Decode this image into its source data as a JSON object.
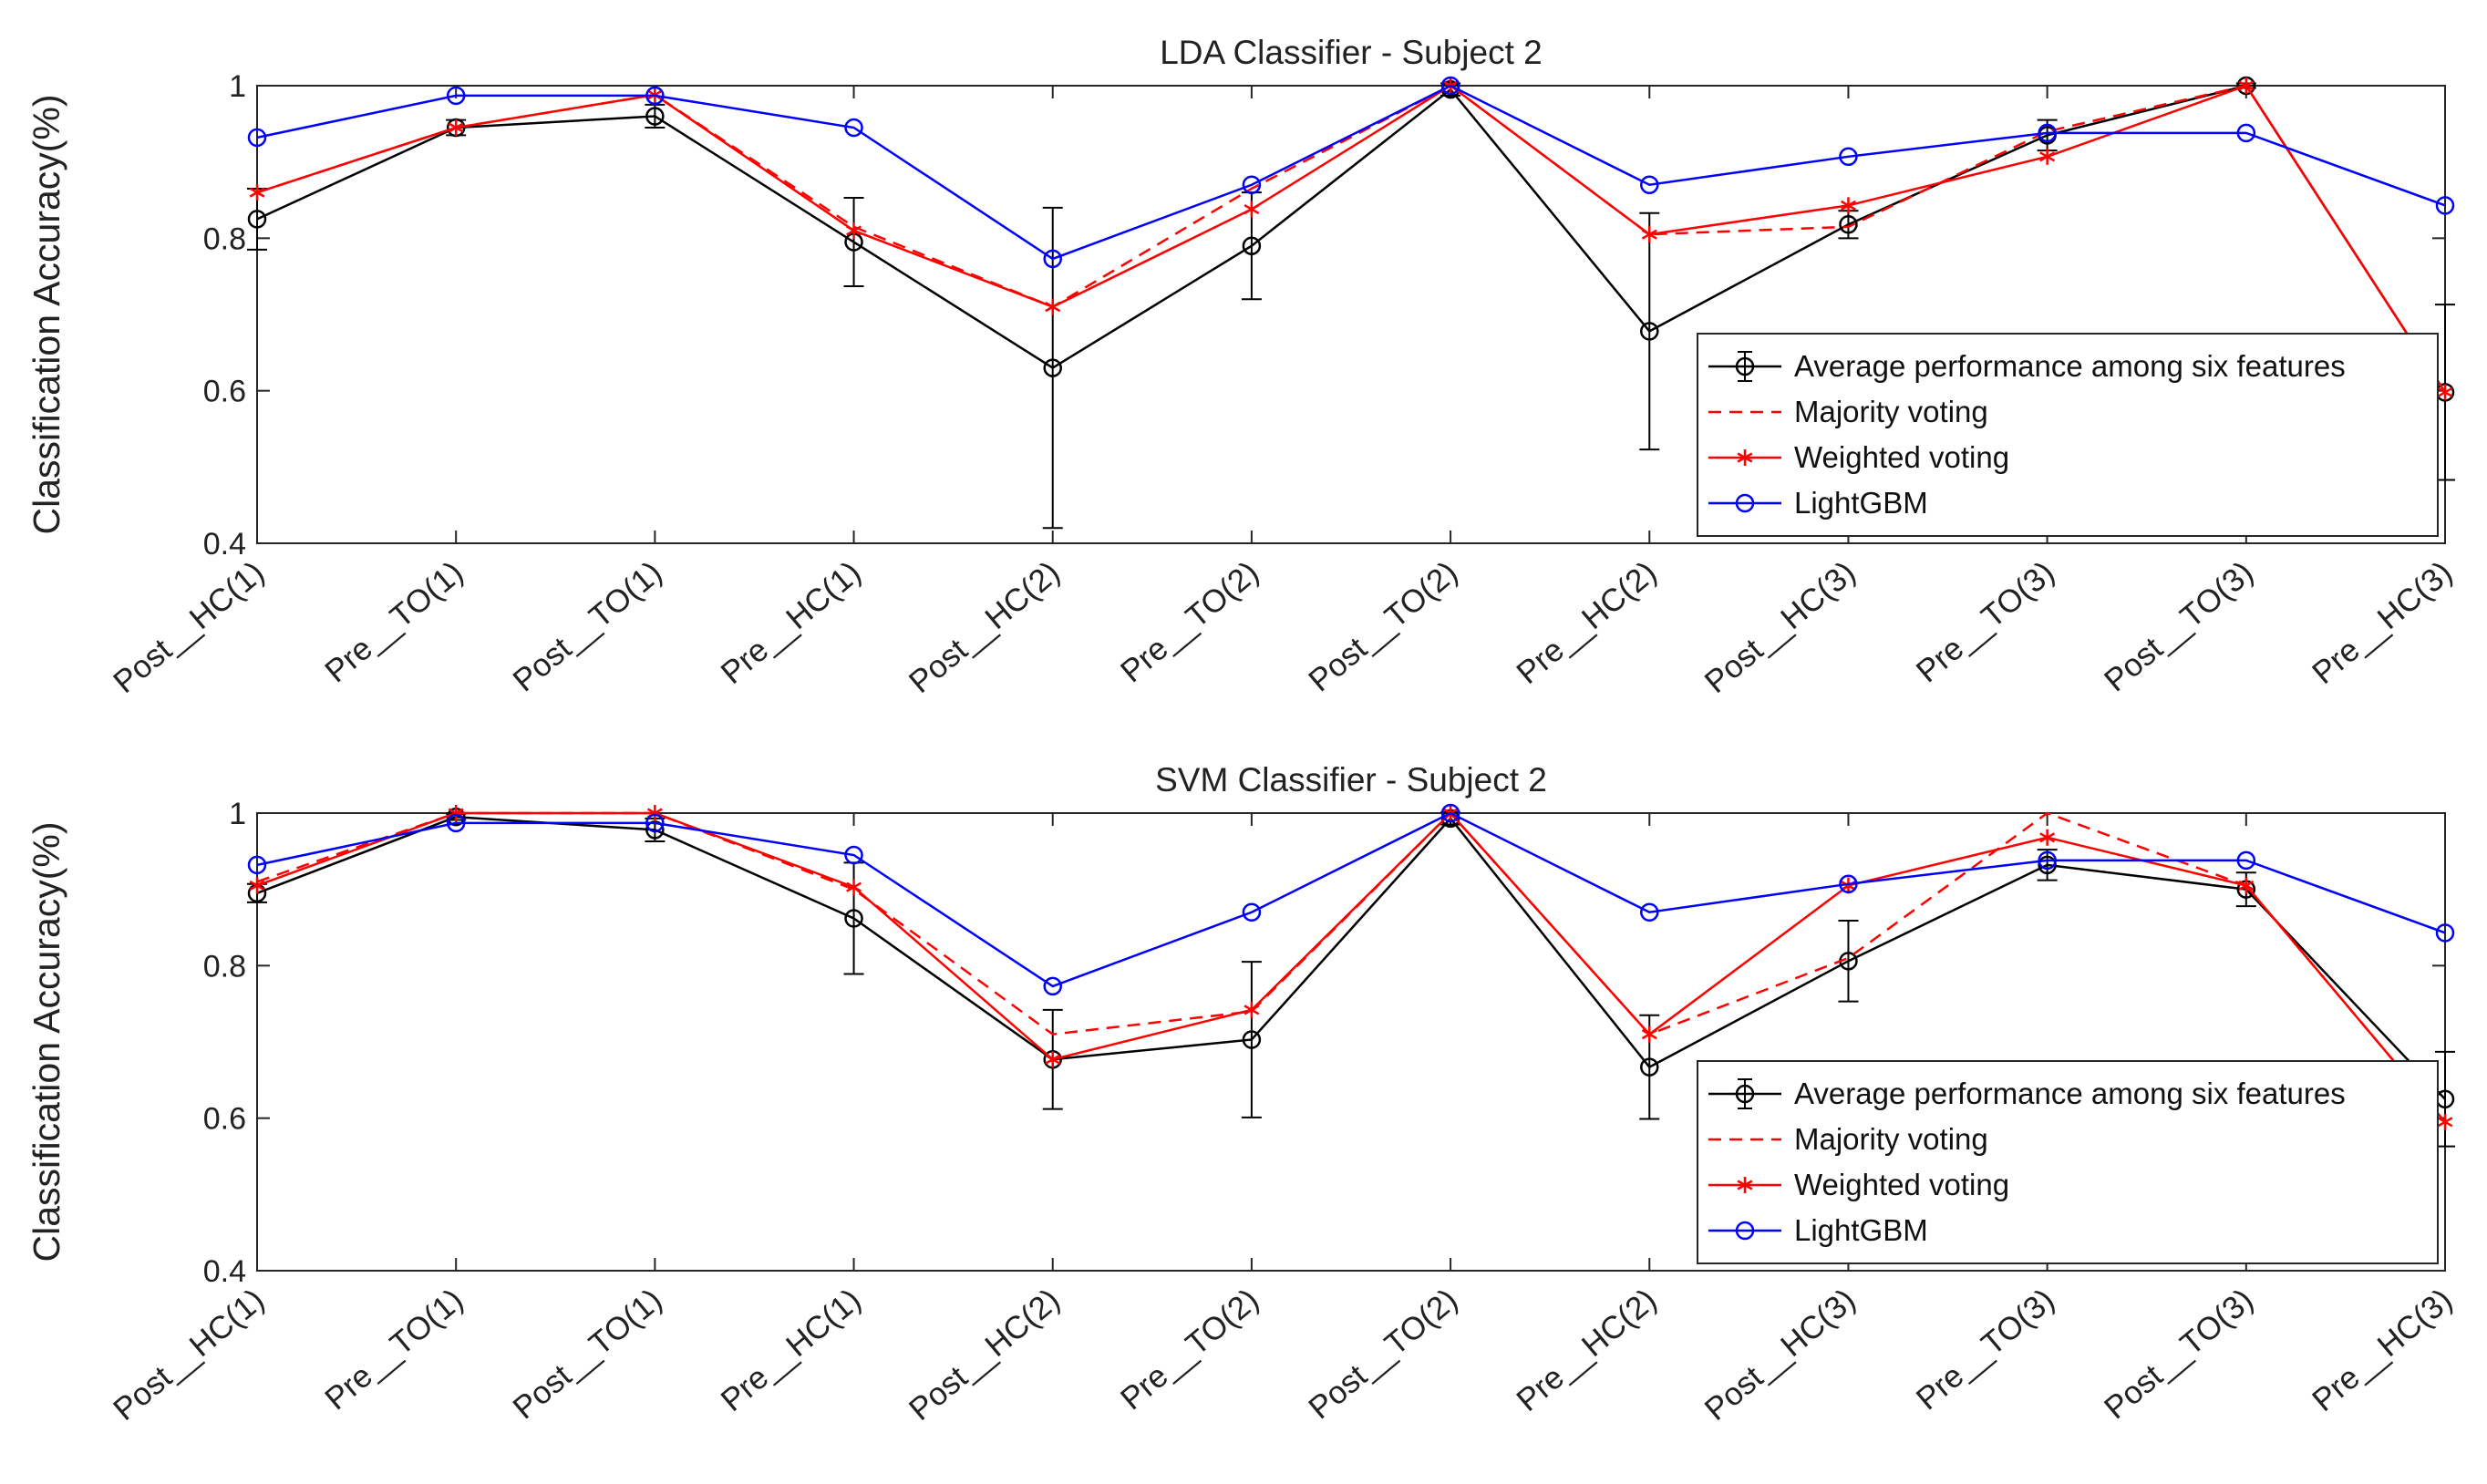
{
  "chart_data": [
    {
      "type": "line",
      "title": "LDA Classifier - Subject 2",
      "xlabel": "",
      "ylabel": "Classification Accuracy(%)",
      "ylim": [
        0.4,
        1.0
      ],
      "yticks": [
        "0.4",
        "0.6",
        "0.8",
        "1"
      ],
      "grid": false,
      "legend_placement": "bottom-right",
      "categories": [
        "Post__HC(1)",
        "Pre__TO(1)",
        "Post__TO(1)",
        "Pre__HC(1)",
        "Post__HC(2)",
        "Pre__TO(2)",
        "Post__TO(2)",
        "Pre__HC(2)",
        "Post__HC(3)",
        "Pre__TO(3)",
        "Post__TO(3)",
        "Pre__HC(3)"
      ],
      "series": [
        {
          "name": "Average performance among six features",
          "color": "#000000",
          "style": "solid",
          "marker": "circle",
          "values": [
            0.825,
            0.945,
            0.96,
            0.795,
            0.63,
            0.79,
            0.995,
            0.678,
            0.818,
            0.935,
            1.0,
            0.598
          ],
          "error": [
            0.04,
            0.01,
            0.015,
            0.058,
            0.21,
            0.07,
            0.008,
            0.155,
            0.018,
            0.02,
            0.003,
            0.115
          ]
        },
        {
          "name": "Majority voting",
          "color": "#ff0000",
          "style": "dashed",
          "marker": "none",
          "values": [
            0.86,
            0.945,
            0.988,
            0.815,
            0.71,
            0.865,
            1.0,
            0.805,
            0.815,
            0.94,
            1.0,
            0.598
          ]
        },
        {
          "name": "Weighted voting",
          "color": "#ff0000",
          "style": "solid",
          "marker": "asterisk",
          "values": [
            0.86,
            0.945,
            0.988,
            0.81,
            0.71,
            0.838,
            1.0,
            0.805,
            0.843,
            0.907,
            1.0,
            0.598
          ]
        },
        {
          "name": "LightGBM",
          "color": "#0000ff",
          "style": "solid",
          "marker": "circle",
          "values": [
            0.932,
            0.987,
            0.987,
            0.945,
            0.773,
            0.87,
            1.0,
            0.87,
            0.907,
            0.938,
            0.938,
            0.843
          ]
        }
      ]
    },
    {
      "type": "line",
      "title": "SVM Classifier - Subject 2",
      "xlabel": "",
      "ylabel": "Classification Accuracy(%)",
      "ylim": [
        0.4,
        1.0
      ],
      "yticks": [
        "0.4",
        "0.6",
        "0.8",
        "1"
      ],
      "grid": false,
      "legend_placement": "bottom-right",
      "categories": [
        "Post__HC(1)",
        "Pre__TO(1)",
        "Post__TO(1)",
        "Pre__HC(1)",
        "Post__HC(2)",
        "Pre__TO(2)",
        "Post__TO(2)",
        "Pre__HC(2)",
        "Post__HC(3)",
        "Pre__TO(3)",
        "Post__TO(3)",
        "Pre__HC(3)"
      ],
      "series": [
        {
          "name": "Average performance among six features",
          "color": "#000000",
          "style": "solid",
          "marker": "circle",
          "values": [
            0.895,
            0.995,
            0.978,
            0.862,
            0.677,
            0.703,
            0.993,
            0.667,
            0.806,
            0.932,
            0.9,
            0.625
          ],
          "error": [
            0.012,
            0.004,
            0.015,
            0.073,
            0.065,
            0.102,
            0.008,
            0.068,
            0.053,
            0.02,
            0.022,
            0.062
          ]
        },
        {
          "name": "Majority voting",
          "color": "#ff0000",
          "style": "dashed",
          "marker": "none",
          "values": [
            0.91,
            1.0,
            1.0,
            0.9,
            0.71,
            0.74,
            1.0,
            0.71,
            0.81,
            1.0,
            0.905,
            0.595
          ]
        },
        {
          "name": "Weighted voting",
          "color": "#ff0000",
          "style": "solid",
          "marker": "asterisk",
          "values": [
            0.905,
            1.0,
            1.0,
            0.903,
            0.677,
            0.742,
            1.0,
            0.71,
            0.905,
            0.968,
            0.905,
            0.595
          ]
        },
        {
          "name": "LightGBM",
          "color": "#0000ff",
          "style": "solid",
          "marker": "circle",
          "values": [
            0.932,
            0.987,
            0.987,
            0.945,
            0.773,
            0.87,
            1.0,
            0.87,
            0.907,
            0.938,
            0.938,
            0.843
          ]
        }
      ]
    }
  ]
}
